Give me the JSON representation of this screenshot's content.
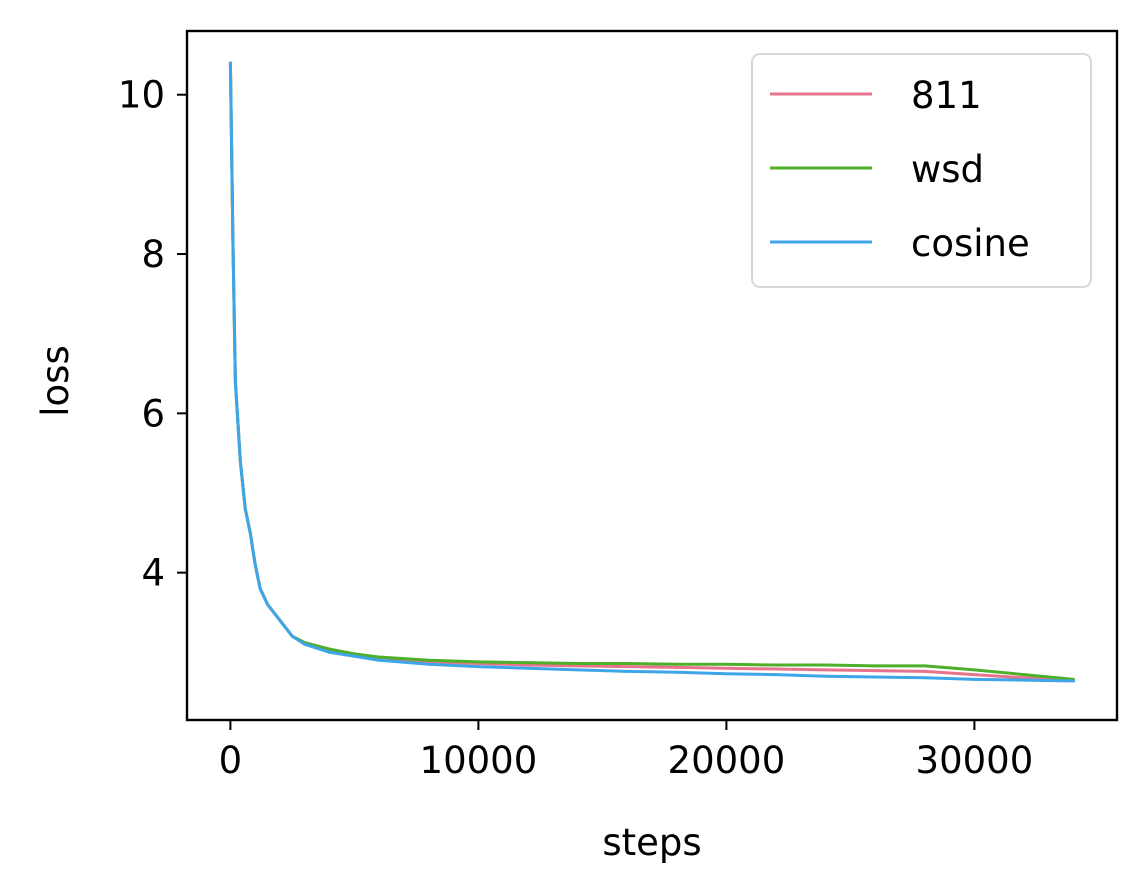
{
  "chart_data": {
    "type": "line",
    "title": "",
    "xlabel": "steps",
    "ylabel": "loss",
    "xlim": [
      -1750,
      35750
    ],
    "ylim": [
      2.15,
      10.8
    ],
    "xticks": [
      {
        "value": 0,
        "label": "0"
      },
      {
        "value": 10000,
        "label": "10000"
      },
      {
        "value": 20000,
        "label": "20000"
      },
      {
        "value": 30000,
        "label": "30000"
      }
    ],
    "yticks": [
      {
        "value": 4,
        "label": "4"
      },
      {
        "value": 6,
        "label": "6"
      },
      {
        "value": 8,
        "label": "8"
      },
      {
        "value": 10,
        "label": "10"
      }
    ],
    "grid": false,
    "legend_position": "top-right",
    "series": [
      {
        "name": "811",
        "color": "#e8738c",
        "x": [
          0,
          100,
          200,
          400,
          600,
          800,
          1000,
          1200,
          1500,
          2000,
          2500,
          3000,
          4000,
          5000,
          6000,
          8000,
          10000,
          12000,
          14000,
          16000,
          18000,
          20000,
          22000,
          24000,
          26000,
          28000,
          30000,
          32000,
          34000
        ],
        "y": [
          10.4,
          8.2,
          6.4,
          5.4,
          4.8,
          4.5,
          4.1,
          3.8,
          3.6,
          3.4,
          3.2,
          3.12,
          3.03,
          2.97,
          2.93,
          2.88,
          2.86,
          2.84,
          2.83,
          2.82,
          2.81,
          2.8,
          2.79,
          2.78,
          2.77,
          2.76,
          2.72,
          2.68,
          2.65
        ]
      },
      {
        "name": "wsd",
        "color": "#4daf2a",
        "x": [
          0,
          100,
          200,
          400,
          600,
          800,
          1000,
          1200,
          1500,
          2000,
          2500,
          3000,
          4000,
          5000,
          6000,
          8000,
          10000,
          12000,
          14000,
          16000,
          18000,
          20000,
          22000,
          24000,
          26000,
          28000,
          30000,
          32000,
          34000
        ],
        "y": [
          10.4,
          8.2,
          6.4,
          5.4,
          4.8,
          4.5,
          4.1,
          3.8,
          3.6,
          3.4,
          3.2,
          3.12,
          3.04,
          2.98,
          2.94,
          2.9,
          2.88,
          2.87,
          2.86,
          2.86,
          2.85,
          2.85,
          2.84,
          2.84,
          2.83,
          2.83,
          2.78,
          2.72,
          2.66
        ]
      },
      {
        "name": "cosine",
        "color": "#3ea5e8",
        "x": [
          0,
          100,
          200,
          400,
          600,
          800,
          1000,
          1200,
          1500,
          2000,
          2500,
          3000,
          4000,
          5000,
          6000,
          8000,
          10000,
          12000,
          14000,
          16000,
          18000,
          20000,
          22000,
          24000,
          26000,
          28000,
          30000,
          32000,
          34000
        ],
        "y": [
          10.4,
          8.2,
          6.4,
          5.4,
          4.8,
          4.5,
          4.1,
          3.8,
          3.6,
          3.4,
          3.2,
          3.1,
          3.0,
          2.95,
          2.9,
          2.85,
          2.82,
          2.8,
          2.78,
          2.76,
          2.75,
          2.73,
          2.72,
          2.7,
          2.69,
          2.68,
          2.66,
          2.65,
          2.64
        ]
      }
    ]
  }
}
